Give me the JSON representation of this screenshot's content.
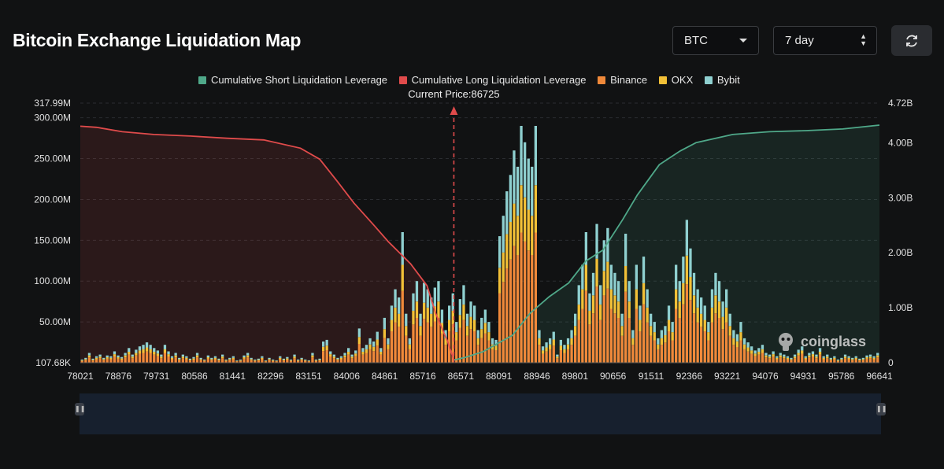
{
  "title": "Bitcoin Exchange Liquidation Map",
  "controls": {
    "symbol": "BTC",
    "period": "7 day"
  },
  "watermark": "coinglass",
  "chart_data": {
    "type": "bar",
    "legend": [
      {
        "label": "Cumulative Short Liquidation Leverage",
        "color": "#4fa889"
      },
      {
        "label": "Cumulative Long Liquidation Leverage",
        "color": "#e04b4b"
      },
      {
        "label": "Binance",
        "color": "#f0893a"
      },
      {
        "label": "OKX",
        "color": "#f2c037"
      },
      {
        "label": "Bybit",
        "color": "#8fd0d0"
      }
    ],
    "current_price_label": "Current Price:86725",
    "current_price": 86725,
    "x_range": [
      78021,
      96641
    ],
    "x_ticks": [
      "78021",
      "78876",
      "79731",
      "80586",
      "81441",
      "82296",
      "83151",
      "84006",
      "84861",
      "85716",
      "86571",
      "88091",
      "88946",
      "89801",
      "90656",
      "91511",
      "92366",
      "93221",
      "94076",
      "94931",
      "95786",
      "96641"
    ],
    "left_axis": {
      "labels": [
        "107.68K",
        "50.00M",
        "100.00M",
        "150.00M",
        "200.00M",
        "250.00M",
        "300.00M",
        "317.99M"
      ],
      "values": [
        0.10768,
        50,
        100,
        150,
        200,
        250,
        300,
        317.99
      ],
      "unit": "M"
    },
    "right_axis": {
      "labels": [
        "0",
        "1.00B",
        "2.00B",
        "3.00B",
        "4.00B",
        "4.72B"
      ],
      "values": [
        0,
        1,
        2,
        3,
        4,
        4.72
      ],
      "unit": "B"
    },
    "bar_totals_M": [
      4,
      6,
      12,
      5,
      8,
      10,
      6,
      9,
      8,
      14,
      9,
      7,
      12,
      18,
      10,
      16,
      20,
      22,
      25,
      22,
      18,
      15,
      10,
      22,
      14,
      8,
      12,
      6,
      10,
      8,
      5,
      7,
      12,
      6,
      4,
      9,
      6,
      8,
      5,
      10,
      4,
      6,
      8,
      3,
      4,
      9,
      12,
      6,
      4,
      5,
      8,
      3,
      6,
      4,
      3,
      8,
      5,
      7,
      4,
      10,
      4,
      6,
      4,
      3,
      12,
      4,
      5,
      26,
      28,
      14,
      10,
      6,
      8,
      12,
      18,
      10,
      15,
      42,
      18,
      22,
      30,
      26,
      38,
      18,
      55,
      30,
      70,
      90,
      80,
      160,
      60,
      30,
      85,
      100,
      60,
      98,
      90,
      80,
      92,
      100,
      65,
      40,
      70,
      85,
      50,
      78,
      95,
      60,
      75,
      70,
      40,
      55,
      65,
      50,
      30,
      28,
      155,
      180,
      210,
      230,
      260,
      240,
      290,
      270,
      250,
      240,
      290,
      40,
      20,
      25,
      30,
      38,
      10,
      28,
      22,
      30,
      40,
      60,
      95,
      120,
      160,
      85,
      110,
      170,
      95,
      150,
      165,
      120,
      110,
      100,
      60,
      158,
      100,
      40,
      120,
      70,
      130,
      90,
      60,
      50,
      30,
      40,
      45,
      70,
      50,
      120,
      100,
      130,
      175,
      140,
      110,
      90,
      80,
      70,
      50,
      90,
      110,
      100,
      75,
      90,
      60,
      40,
      35,
      50,
      30,
      25,
      20,
      15,
      18,
      22,
      12,
      10,
      14,
      8,
      12,
      10,
      8,
      6,
      10,
      16,
      20,
      8,
      12,
      14,
      10,
      18,
      8,
      10,
      6,
      8,
      4,
      6,
      10,
      8,
      6,
      8,
      5,
      6,
      9,
      10,
      8,
      12
    ],
    "cumulative_long_B": {
      "x": [
        78021,
        78400,
        79000,
        79731,
        80586,
        81441,
        82296,
        83151,
        83600,
        84006,
        84400,
        84861,
        85200,
        85716,
        86100,
        86300,
        86571,
        86725
      ],
      "y": [
        4.3,
        4.28,
        4.2,
        4.15,
        4.12,
        4.08,
        4.05,
        3.9,
        3.7,
        3.3,
        2.9,
        2.5,
        2.2,
        1.8,
        1.4,
        0.9,
        0.4,
        0.05
      ]
    },
    "cumulative_short_B": {
      "x": [
        86725,
        87000,
        87400,
        88091,
        88500,
        88946,
        89400,
        89801,
        90200,
        90656,
        91000,
        91511,
        92000,
        92366,
        93221,
        94076,
        94931,
        95786,
        96641
      ],
      "y": [
        0.05,
        0.1,
        0.2,
        0.5,
        0.9,
        1.2,
        1.45,
        1.85,
        2.05,
        2.6,
        3.05,
        3.6,
        3.85,
        4.0,
        4.15,
        4.2,
        4.22,
        4.25,
        4.32
      ]
    }
  }
}
